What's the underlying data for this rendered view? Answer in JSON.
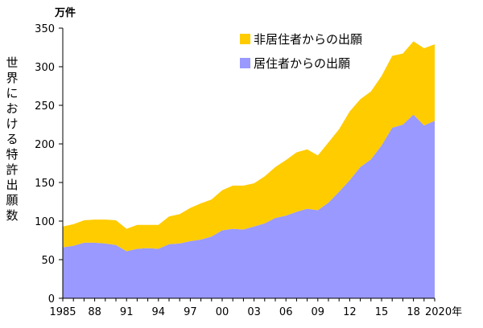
{
  "chart_data": {
    "type": "area",
    "stacked": true,
    "unit_label": "万件",
    "ylabel": "世界における特許出願数",
    "ylim": [
      0,
      350
    ],
    "yticks": [
      0,
      50,
      100,
      150,
      200,
      250,
      300,
      350
    ],
    "xlim": [
      1985,
      2020
    ],
    "x": [
      1985,
      1986,
      1987,
      1988,
      1989,
      1990,
      1991,
      1992,
      1993,
      1994,
      1995,
      1996,
      1997,
      1998,
      1999,
      2000,
      2001,
      2002,
      2003,
      2004,
      2005,
      2006,
      2007,
      2008,
      2009,
      2010,
      2011,
      2012,
      2013,
      2014,
      2015,
      2016,
      2017,
      2018,
      2019,
      2020
    ],
    "xtick_values": [
      1985,
      1988,
      1991,
      1994,
      1997,
      2000,
      2003,
      2006,
      2009,
      2012,
      2015,
      2018,
      2020
    ],
    "xtick_labels": [
      "1985",
      "88",
      "91",
      "94",
      "97",
      "00",
      "03",
      "06",
      "09",
      "12",
      "15",
      "18",
      "2020年"
    ],
    "series": [
      {
        "name": "居住者からの出願",
        "color": "#9999ff",
        "values": [
          66,
          68,
          72,
          72,
          71,
          69,
          61,
          64,
          65,
          64,
          70,
          71,
          74,
          76,
          80,
          88,
          90,
          89,
          93,
          97,
          104,
          107,
          112,
          116,
          114,
          124,
          138,
          153,
          170,
          180,
          198,
          221,
          225,
          238,
          224,
          230
        ]
      },
      {
        "name": "非居住者からの出願",
        "color": "#ffcc00",
        "values": [
          27,
          28,
          29,
          30,
          31,
          32,
          29,
          31,
          30,
          31,
          36,
          38,
          43,
          47,
          48,
          52,
          56,
          57,
          56,
          61,
          66,
          72,
          77,
          77,
          71,
          78,
          81,
          89,
          88,
          88,
          90,
          93,
          92,
          95,
          100,
          99
        ]
      }
    ],
    "legend_position": "top-right",
    "grid": false
  }
}
